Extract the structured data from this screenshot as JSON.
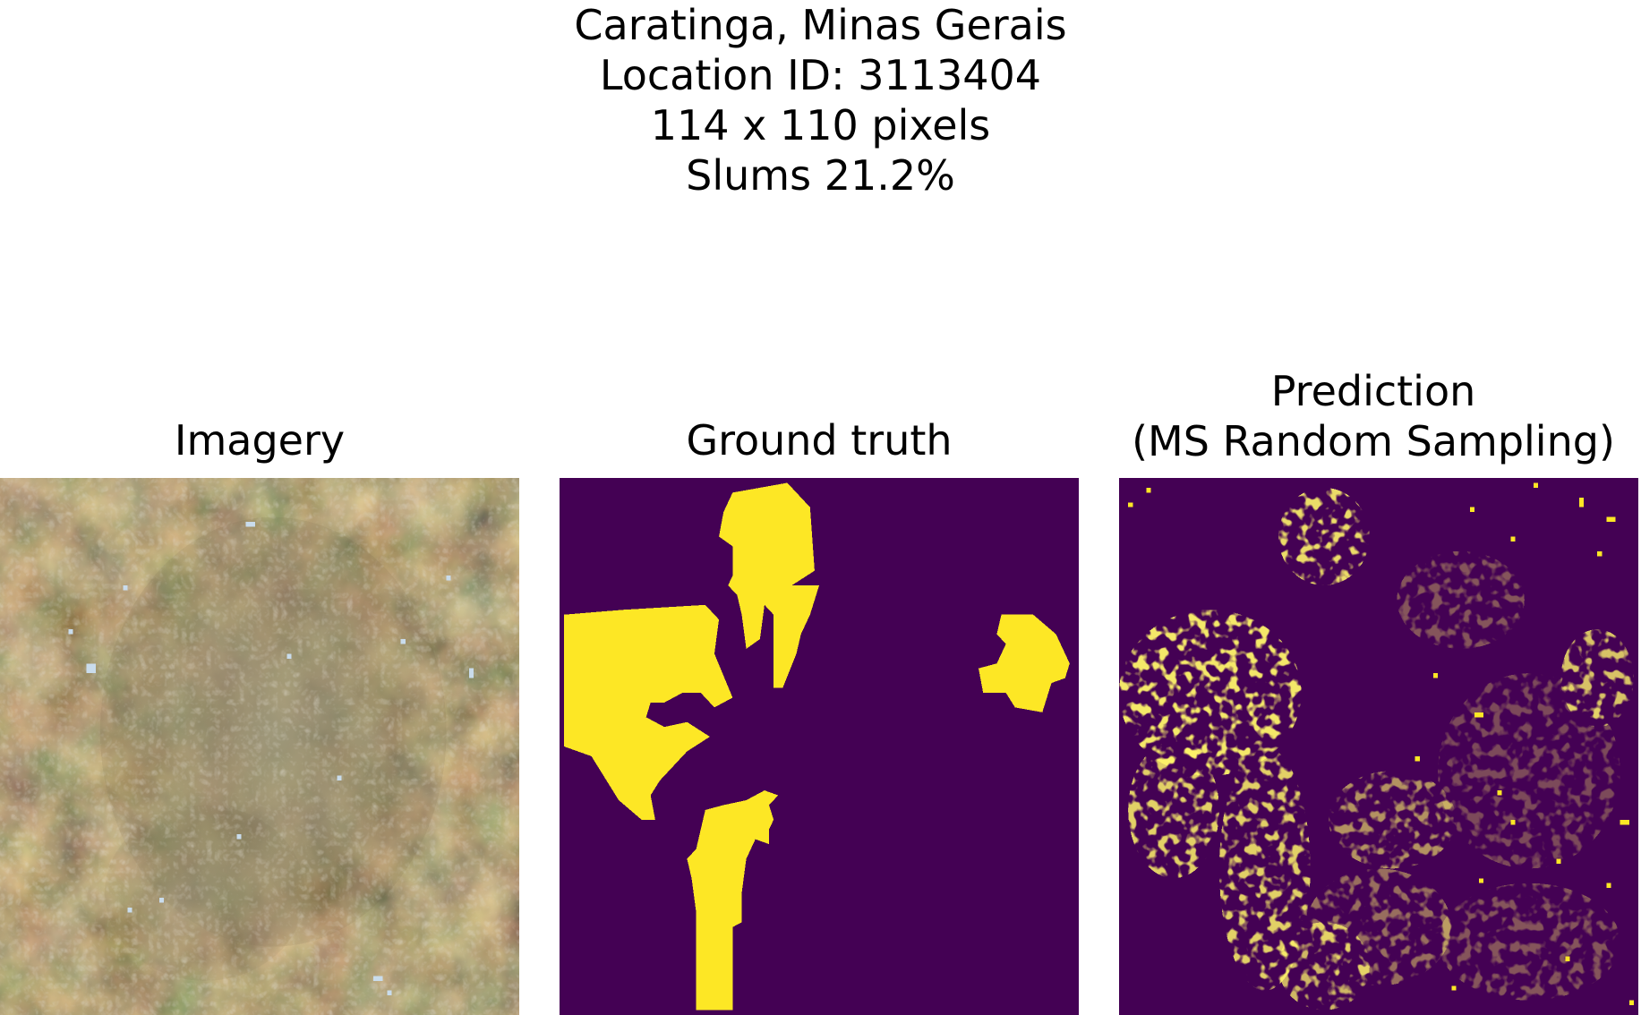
{
  "figure": {
    "suptitle_lines": [
      "Caratinga, Minas Gerais",
      "Location ID: 3113404",
      "114 x 110 pixels",
      "Slums 21.2%"
    ]
  },
  "panels": [
    {
      "title_lines": [
        "Imagery"
      ]
    },
    {
      "title_lines": [
        "Ground truth"
      ]
    },
    {
      "title_lines": [
        "Prediction",
        "(MS Random Sampling)"
      ]
    }
  ],
  "colors": {
    "background_class": "#440154",
    "slum_class": "#fde725"
  }
}
